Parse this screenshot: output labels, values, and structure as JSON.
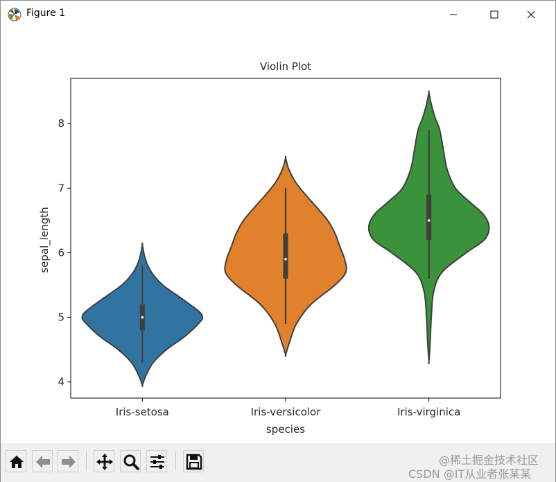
{
  "window": {
    "title": "Figure 1",
    "icon": "matplotlib-icon"
  },
  "window_controls": [
    "minimize-icon",
    "maximize-icon",
    "close-icon"
  ],
  "chart_data": {
    "type": "violin",
    "title": "Violin Plot",
    "xlabel": "species",
    "ylabel": "sepal_length",
    "categories": [
      "Iris-setosa",
      "Iris-versicolor",
      "Iris-virginica"
    ],
    "ylim": [
      3.75,
      8.7
    ],
    "yticks": [
      4,
      5,
      6,
      7,
      8
    ],
    "grid": false,
    "colors": [
      "#3274a1",
      "#e1812c",
      "#3a923a"
    ],
    "violins": [
      {
        "category": "Iris-setosa",
        "min_extent": 3.95,
        "max_extent": 6.12,
        "mode": 5.0,
        "whisker_low": 4.3,
        "whisker_high": 5.8,
        "q1": 4.8,
        "q3": 5.2,
        "median": 5.0,
        "profile": [
          [
            3.95,
            0.0
          ],
          [
            4.1,
            0.06
          ],
          [
            4.3,
            0.18
          ],
          [
            4.5,
            0.4
          ],
          [
            4.7,
            0.7
          ],
          [
            4.9,
            0.93
          ],
          [
            5.0,
            1.0
          ],
          [
            5.1,
            0.93
          ],
          [
            5.3,
            0.64
          ],
          [
            5.5,
            0.34
          ],
          [
            5.7,
            0.15
          ],
          [
            5.9,
            0.05
          ],
          [
            6.12,
            0.0
          ]
        ]
      },
      {
        "category": "Iris-versicolor",
        "min_extent": 4.42,
        "max_extent": 7.47,
        "mode": 5.7,
        "whisker_low": 4.9,
        "whisker_high": 7.0,
        "q1": 5.6,
        "q3": 6.3,
        "median": 5.9,
        "profile": [
          [
            4.42,
            0.0
          ],
          [
            4.6,
            0.06
          ],
          [
            4.9,
            0.18
          ],
          [
            5.2,
            0.42
          ],
          [
            5.5,
            0.82
          ],
          [
            5.7,
            1.0
          ],
          [
            5.9,
            0.98
          ],
          [
            6.1,
            0.9
          ],
          [
            6.3,
            0.82
          ],
          [
            6.5,
            0.7
          ],
          [
            6.7,
            0.52
          ],
          [
            6.9,
            0.33
          ],
          [
            7.1,
            0.16
          ],
          [
            7.3,
            0.05
          ],
          [
            7.47,
            0.0
          ]
        ]
      },
      {
        "category": "Iris-virginica",
        "min_extent": 4.32,
        "max_extent": 8.48,
        "mode": 6.4,
        "whisker_low": 5.6,
        "whisker_high": 7.9,
        "q1": 6.2,
        "q3": 6.9,
        "median": 6.5,
        "profile": [
          [
            4.32,
            0.0
          ],
          [
            4.6,
            0.02
          ],
          [
            5.0,
            0.04
          ],
          [
            5.4,
            0.08
          ],
          [
            5.7,
            0.22
          ],
          [
            6.0,
            0.62
          ],
          [
            6.2,
            0.92
          ],
          [
            6.4,
            1.0
          ],
          [
            6.6,
            0.9
          ],
          [
            6.8,
            0.66
          ],
          [
            7.0,
            0.44
          ],
          [
            7.3,
            0.3
          ],
          [
            7.6,
            0.24
          ],
          [
            7.9,
            0.18
          ],
          [
            8.1,
            0.1
          ],
          [
            8.3,
            0.04
          ],
          [
            8.48,
            0.0
          ]
        ]
      }
    ]
  },
  "toolbar": {
    "buttons": [
      "home-icon",
      "back-icon",
      "forward-icon",
      "pan-icon",
      "zoom-icon",
      "configure-subplots-icon",
      "save-icon"
    ]
  },
  "watermark": {
    "line1": "@稀土掘金技术社区",
    "line2": "CSDN @IT从业者张某某"
  }
}
